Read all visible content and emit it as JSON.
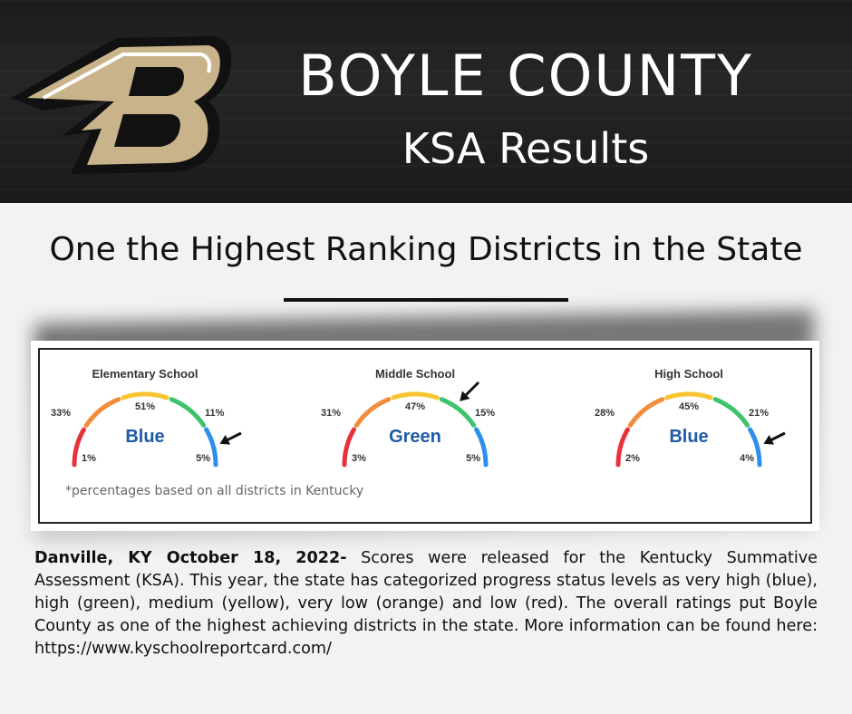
{
  "header": {
    "title": "BOYLE COUNTY",
    "subtitle": "KSA Results",
    "logo_letter": "B",
    "colors": {
      "background": "#1f1f1f",
      "logo_gold": "#c9b38a",
      "logo_black": "#111111"
    }
  },
  "headline": "One the Highest Ranking Districts in the State",
  "gauges": [
    {
      "level": "Elementary School",
      "rating": "Blue",
      "rating_color": "#1f5aa6",
      "segments": {
        "red": "1%",
        "orange": "33%",
        "yellow": "51%",
        "green": "11%",
        "blue": "5%"
      },
      "arrow_points_to": "blue"
    },
    {
      "level": "Middle School",
      "rating": "Green",
      "rating_color": "#1f5aa6",
      "segments": {
        "red": "3%",
        "orange": "31%",
        "yellow": "47%",
        "green": "15%",
        "blue": "5%"
      },
      "arrow_points_to": "green"
    },
    {
      "level": "High School",
      "rating": "Blue",
      "rating_color": "#1f5aa6",
      "segments": {
        "red": "2%",
        "orange": "28%",
        "yellow": "45%",
        "green": "21%",
        "blue": "4%"
      },
      "arrow_points_to": "blue"
    }
  ],
  "segment_colors": {
    "red": "#e8323a",
    "orange": "#f28c3a",
    "yellow": "#f7c531",
    "green": "#3cc46a",
    "blue": "#2b8ff0"
  },
  "footnote": "*percentages based on all districts  in Kentucky",
  "article": {
    "dateline": "Danville, KY October 18, 2022-",
    "text": " Scores were released for the Kentucky Summative Assessment (KSA). This year, the state has categorized progress status levels as very high (blue), high (green), medium (yellow), very low (orange) and  low (red). The overall ratings put Boyle County as one of the highest achieving districts in the state. More information can be found here: https://www.kyschoolreportcard.com/"
  }
}
